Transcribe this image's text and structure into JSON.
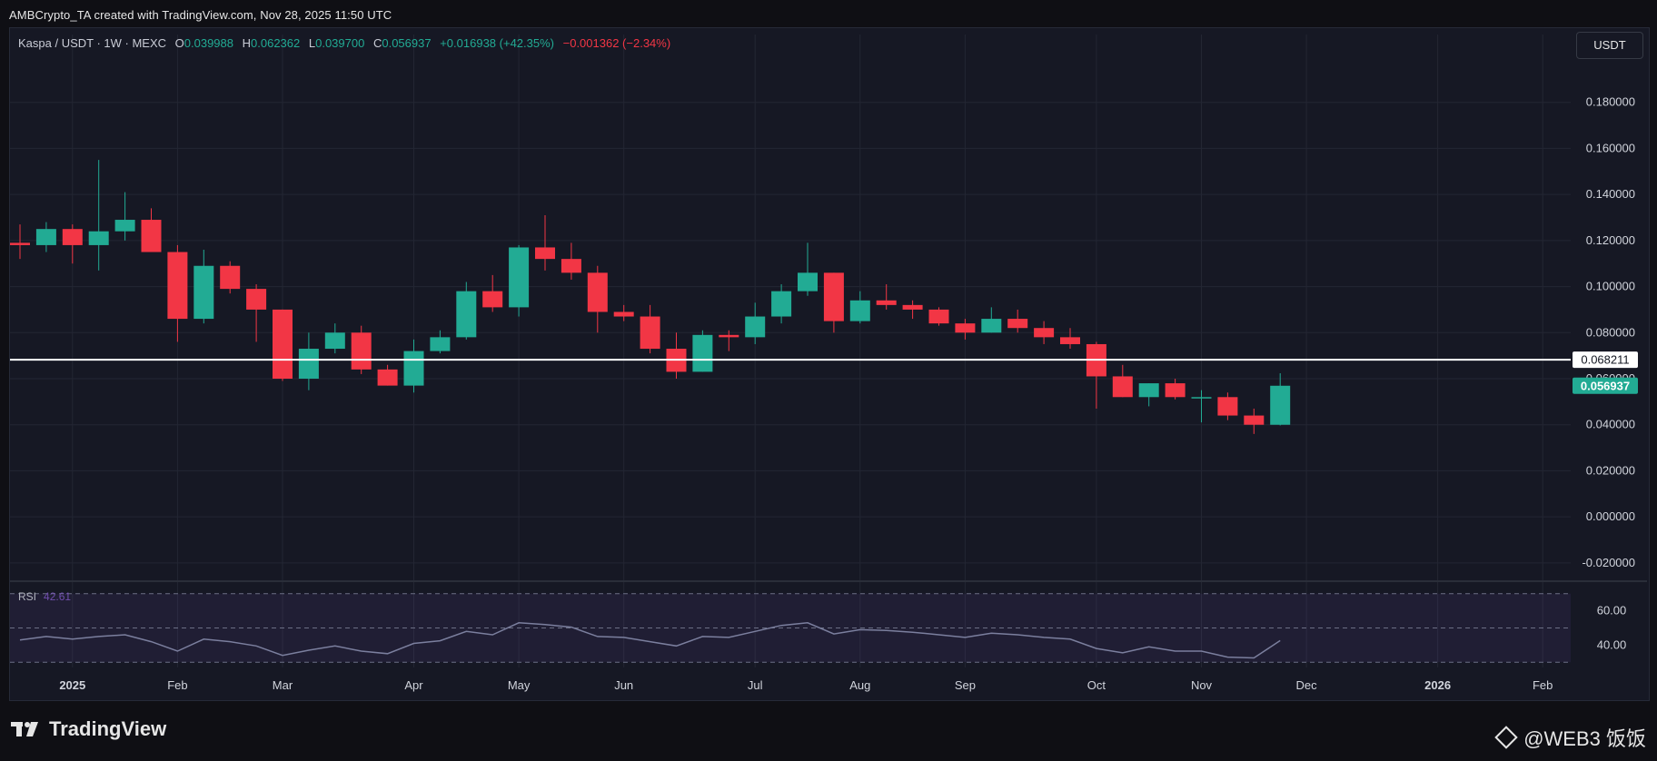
{
  "header": {
    "credit": "AMBCrypto_TA created with TradingView.com, Nov 28, 2025 11:50 UTC"
  },
  "legend": {
    "symbol": "Kaspa / USDT · 1W · MEXC",
    "o_label": "O",
    "o_value": "0.039988",
    "h_label": "H",
    "h_value": "0.062362",
    "l_label": "L",
    "l_value": "0.039700",
    "c_label": "C",
    "c_value": "0.056937",
    "change": "+0.016938 (+42.35%)",
    "secondary_change": "−0.001362 (−2.34%)"
  },
  "unit_button": "USDT",
  "rsi": {
    "name": "RSI",
    "value": "42.61"
  },
  "footer": {
    "brand": "TradingView",
    "watermark": "@WEB3 饭饭"
  },
  "colors": {
    "up": "#22ab94",
    "down": "#f23645",
    "rsi_line": "#7b7f9e",
    "hline": "#ffffff",
    "grid": "#232633"
  },
  "chart_data": {
    "type": "candlestick",
    "timeframe": "1W",
    "y_ticks": [
      "0.180000",
      "0.160000",
      "0.140000",
      "0.120000",
      "0.100000",
      "0.080000",
      "0.060000",
      "0.040000",
      "0.020000",
      "0.000000",
      "-0.020000"
    ],
    "ylim": [
      -0.024,
      0.2
    ],
    "x_ticks": [
      {
        "label": "2025",
        "bold": true,
        "index": 2
      },
      {
        "label": "Feb",
        "bold": false,
        "index": 6
      },
      {
        "label": "Mar",
        "bold": false,
        "index": 10
      },
      {
        "label": "Apr",
        "bold": false,
        "index": 15
      },
      {
        "label": "May",
        "bold": false,
        "index": 19
      },
      {
        "label": "Jun",
        "bold": false,
        "index": 23
      },
      {
        "label": "Jul",
        "bold": false,
        "index": 28
      },
      {
        "label": "Aug",
        "bold": false,
        "index": 32
      },
      {
        "label": "Sep",
        "bold": false,
        "index": 36
      },
      {
        "label": "Oct",
        "bold": false,
        "index": 41
      },
      {
        "label": "Nov",
        "bold": false,
        "index": 45
      },
      {
        "label": "Dec",
        "bold": false,
        "index": 49
      },
      {
        "label": "2026",
        "bold": true,
        "index": 54
      },
      {
        "label": "Feb",
        "bold": false,
        "index": 58
      }
    ],
    "horizontal_line": {
      "value": 0.068211,
      "label": "0.068211"
    },
    "last_price": {
      "value": 0.056937,
      "label": "0.056937"
    },
    "candles": [
      {
        "o": 0.119,
        "h": 0.127,
        "l": 0.112,
        "c": 0.118
      },
      {
        "o": 0.118,
        "h": 0.128,
        "l": 0.115,
        "c": 0.125
      },
      {
        "o": 0.125,
        "h": 0.127,
        "l": 0.11,
        "c": 0.118
      },
      {
        "o": 0.118,
        "h": 0.155,
        "l": 0.107,
        "c": 0.124
      },
      {
        "o": 0.124,
        "h": 0.141,
        "l": 0.12,
        "c": 0.129
      },
      {
        "o": 0.129,
        "h": 0.134,
        "l": 0.115,
        "c": 0.115
      },
      {
        "o": 0.115,
        "h": 0.118,
        "l": 0.076,
        "c": 0.086
      },
      {
        "o": 0.086,
        "h": 0.116,
        "l": 0.084,
        "c": 0.109
      },
      {
        "o": 0.109,
        "h": 0.111,
        "l": 0.097,
        "c": 0.099
      },
      {
        "o": 0.099,
        "h": 0.101,
        "l": 0.076,
        "c": 0.09
      },
      {
        "o": 0.09,
        "h": 0.09,
        "l": 0.059,
        "c": 0.06
      },
      {
        "o": 0.06,
        "h": 0.08,
        "l": 0.055,
        "c": 0.073
      },
      {
        "o": 0.073,
        "h": 0.084,
        "l": 0.071,
        "c": 0.08
      },
      {
        "o": 0.08,
        "h": 0.083,
        "l": 0.062,
        "c": 0.064
      },
      {
        "o": 0.064,
        "h": 0.066,
        "l": 0.057,
        "c": 0.057
      },
      {
        "o": 0.057,
        "h": 0.077,
        "l": 0.054,
        "c": 0.072
      },
      {
        "o": 0.072,
        "h": 0.081,
        "l": 0.071,
        "c": 0.078
      },
      {
        "o": 0.078,
        "h": 0.102,
        "l": 0.077,
        "c": 0.098
      },
      {
        "o": 0.098,
        "h": 0.105,
        "l": 0.089,
        "c": 0.091
      },
      {
        "o": 0.091,
        "h": 0.118,
        "l": 0.087,
        "c": 0.117
      },
      {
        "o": 0.117,
        "h": 0.131,
        "l": 0.107,
        "c": 0.112
      },
      {
        "o": 0.112,
        "h": 0.119,
        "l": 0.103,
        "c": 0.106
      },
      {
        "o": 0.106,
        "h": 0.109,
        "l": 0.08,
        "c": 0.089
      },
      {
        "o": 0.089,
        "h": 0.092,
        "l": 0.085,
        "c": 0.087
      },
      {
        "o": 0.087,
        "h": 0.092,
        "l": 0.071,
        "c": 0.073
      },
      {
        "o": 0.073,
        "h": 0.08,
        "l": 0.06,
        "c": 0.063
      },
      {
        "o": 0.063,
        "h": 0.081,
        "l": 0.063,
        "c": 0.079
      },
      {
        "o": 0.079,
        "h": 0.081,
        "l": 0.072,
        "c": 0.078
      },
      {
        "o": 0.078,
        "h": 0.093,
        "l": 0.075,
        "c": 0.087
      },
      {
        "o": 0.087,
        "h": 0.101,
        "l": 0.084,
        "c": 0.098
      },
      {
        "o": 0.098,
        "h": 0.119,
        "l": 0.096,
        "c": 0.106
      },
      {
        "o": 0.106,
        "h": 0.106,
        "l": 0.08,
        "c": 0.085
      },
      {
        "o": 0.085,
        "h": 0.098,
        "l": 0.084,
        "c": 0.094
      },
      {
        "o": 0.094,
        "h": 0.101,
        "l": 0.09,
        "c": 0.092
      },
      {
        "o": 0.092,
        "h": 0.094,
        "l": 0.086,
        "c": 0.09
      },
      {
        "o": 0.09,
        "h": 0.091,
        "l": 0.083,
        "c": 0.084
      },
      {
        "o": 0.084,
        "h": 0.086,
        "l": 0.077,
        "c": 0.08
      },
      {
        "o": 0.08,
        "h": 0.091,
        "l": 0.08,
        "c": 0.086
      },
      {
        "o": 0.086,
        "h": 0.09,
        "l": 0.08,
        "c": 0.082
      },
      {
        "o": 0.082,
        "h": 0.085,
        "l": 0.075,
        "c": 0.078
      },
      {
        "o": 0.078,
        "h": 0.082,
        "l": 0.073,
        "c": 0.075
      },
      {
        "o": 0.075,
        "h": 0.076,
        "l": 0.047,
        "c": 0.061
      },
      {
        "o": 0.061,
        "h": 0.066,
        "l": 0.052,
        "c": 0.052
      },
      {
        "o": 0.052,
        "h": 0.058,
        "l": 0.048,
        "c": 0.058
      },
      {
        "o": 0.058,
        "h": 0.06,
        "l": 0.051,
        "c": 0.052
      },
      {
        "o": 0.052,
        "h": 0.055,
        "l": 0.041,
        "c": 0.052
      },
      {
        "o": 0.052,
        "h": 0.054,
        "l": 0.042,
        "c": 0.044
      },
      {
        "o": 0.044,
        "h": 0.047,
        "l": 0.036,
        "c": 0.04
      },
      {
        "o": 0.039988,
        "h": 0.062362,
        "l": 0.0397,
        "c": 0.056937
      }
    ],
    "rsi": {
      "ylim": [
        28,
        72
      ],
      "ticks": [
        "60.00",
        "40.00"
      ],
      "bands": [
        70,
        50,
        30
      ],
      "values": [
        43,
        45,
        43.5,
        45,
        46,
        42,
        36.5,
        43.5,
        42,
        39.5,
        34,
        37,
        39.5,
        36.5,
        35,
        41,
        42.5,
        48,
        46,
        53,
        52,
        50.5,
        45,
        44.5,
        42,
        39.5,
        45,
        44.5,
        48,
        51.5,
        53,
        46.5,
        49,
        48.5,
        47.5,
        46,
        44.5,
        47,
        46,
        44.5,
        43.5,
        38,
        35.5,
        39,
        36.5,
        36.5,
        33,
        32.5,
        42.61
      ]
    }
  }
}
